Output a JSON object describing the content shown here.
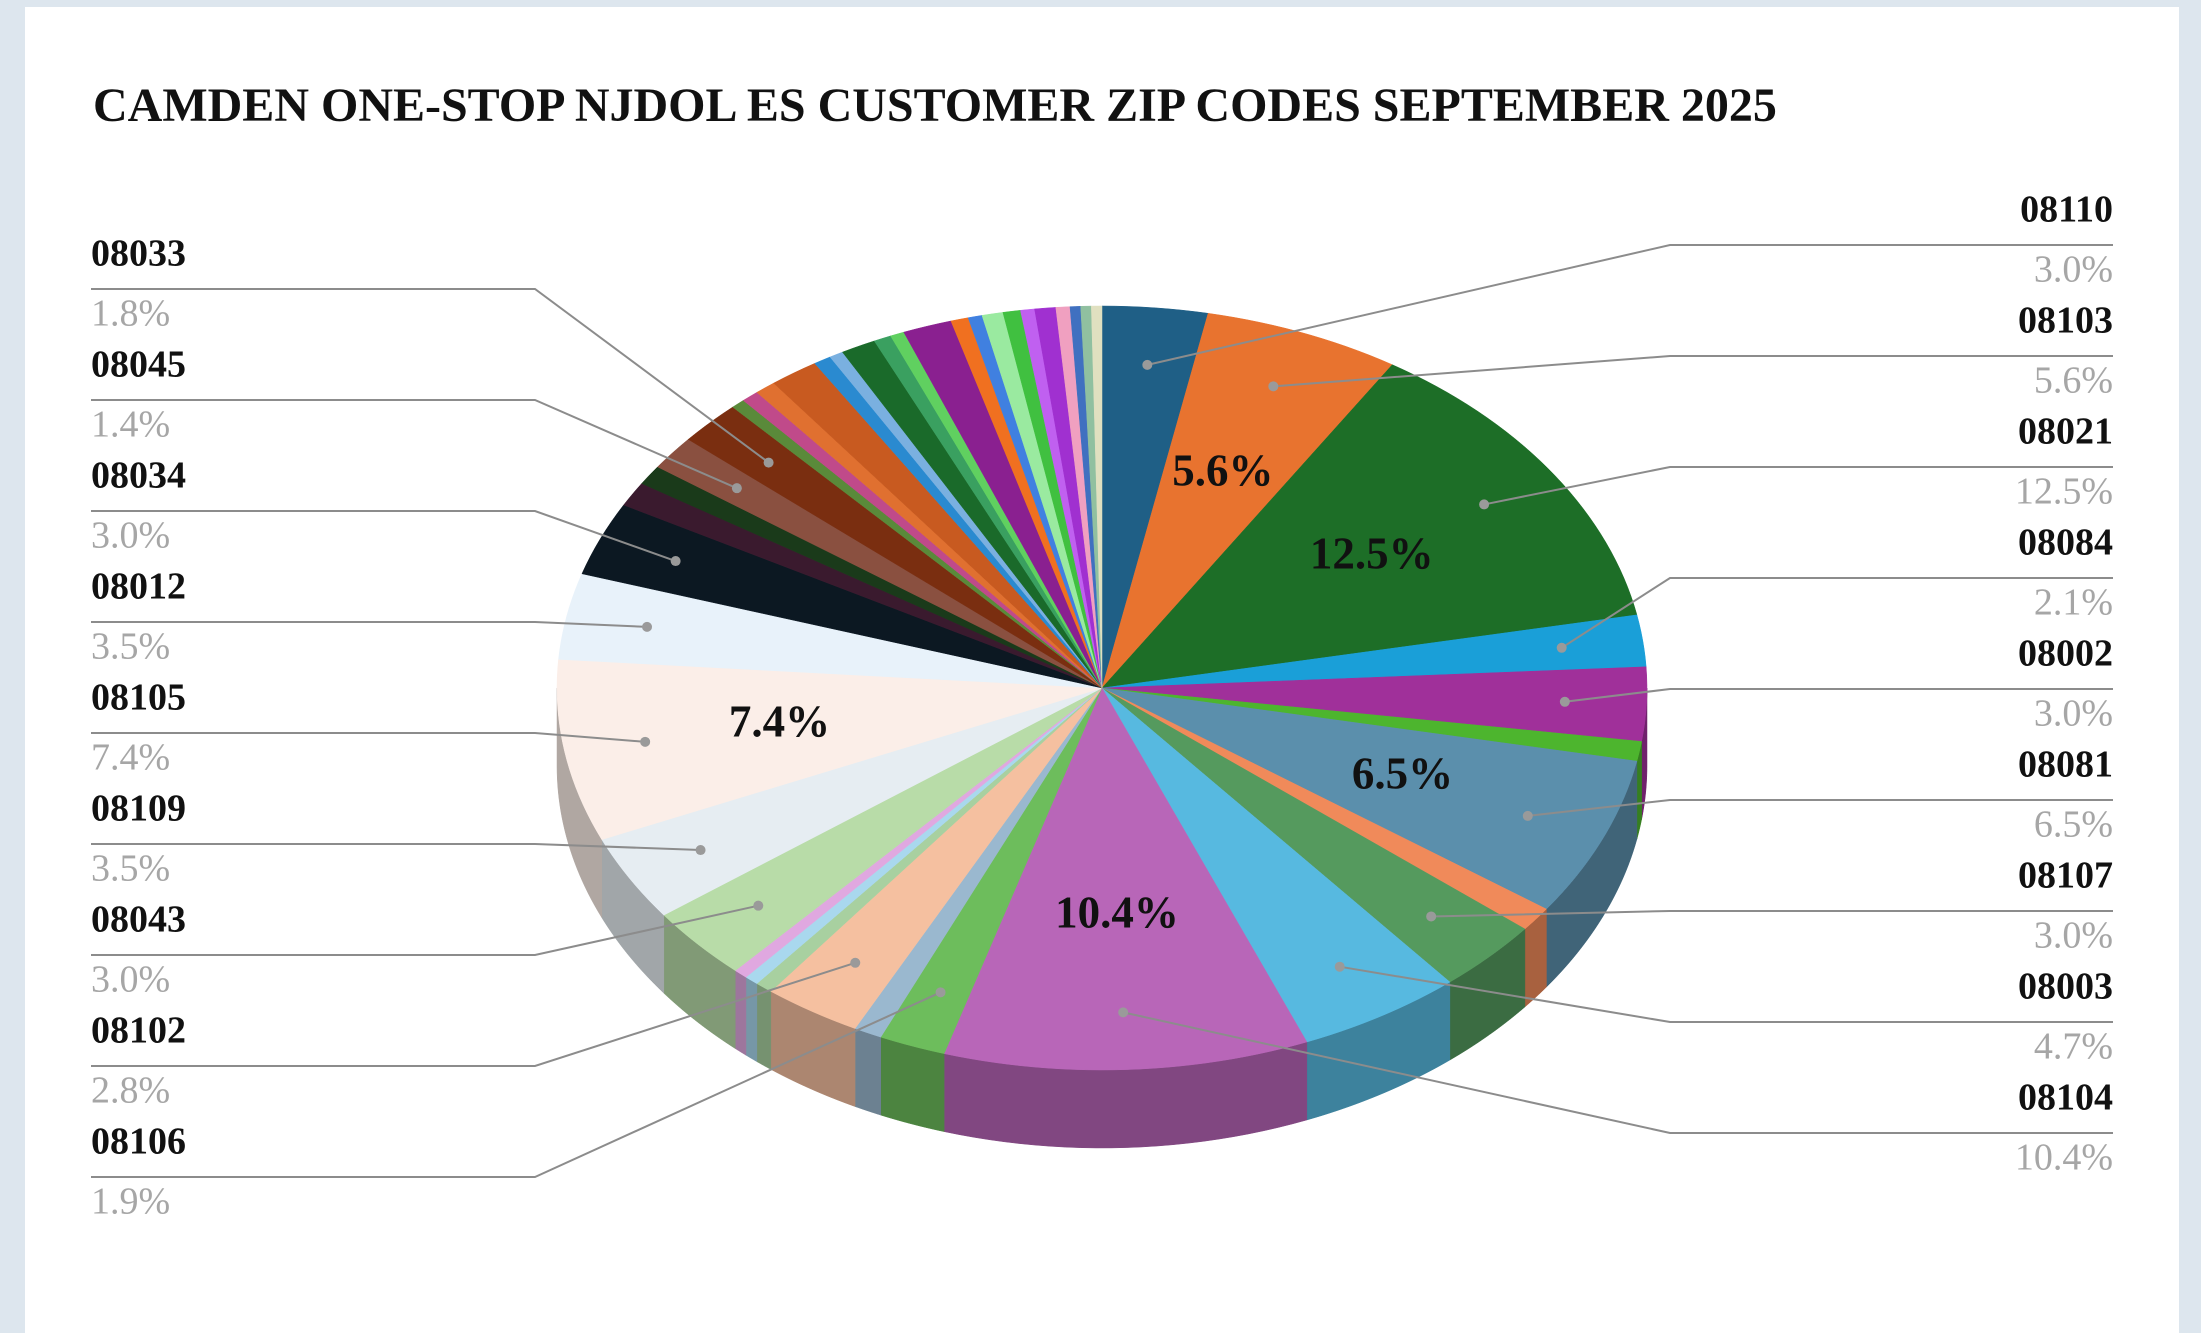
{
  "chart_data": {
    "type": "pie",
    "title": "CAMDEN ONE-STOP NJDOL ES CUSTOMER ZIP CODES  SEPTEMBER 2025",
    "categories": [
      "08110",
      "08103",
      "08021",
      "08084",
      "08002",
      null,
      "08081",
      null,
      "08107",
      "08003",
      "08104",
      "08106",
      null,
      "08102",
      null,
      null,
      null,
      "08043",
      "08109",
      "08105",
      "08012",
      "08034",
      null,
      null,
      "08045",
      "08033",
      null,
      null,
      null,
      null,
      null,
      null,
      null,
      null,
      null,
      null,
      null,
      null,
      null,
      null,
      null,
      null,
      null,
      null,
      null,
      null
    ],
    "values": [
      3,
      5.6,
      12.5,
      2.1,
      3,
      0.8,
      6.5,
      1.0,
      3,
      4.7,
      10.4,
      1.9,
      0.8,
      2.8,
      0.5,
      0.4,
      0.4,
      3,
      3.5,
      7.4,
      3.5,
      3,
      1.0,
      0.8,
      1.4,
      1.8,
      0.4,
      0.5,
      0.6,
      1.4,
      0.5,
      0.4,
      1.0,
      0.5,
      0.4,
      1.4,
      0.5,
      0.4,
      0.6,
      0.5,
      0.4,
      0.6,
      0.4,
      0.3,
      0.3,
      0.3
    ],
    "value_labels": [
      "3.0%",
      "5.6%",
      "12.5%",
      "2.1%",
      "3.0%",
      null,
      "6.5%",
      null,
      "3.0%",
      "4.7%",
      "10.4%",
      "1.9%",
      null,
      "2.8%",
      null,
      null,
      null,
      "3.0%",
      "3.5%",
      "7.4%",
      "3.5%",
      "3.0%",
      null,
      null,
      "1.4%",
      "1.8%",
      null,
      null,
      null,
      null,
      null,
      null,
      null,
      null,
      null,
      null,
      null,
      null,
      null,
      null,
      null,
      null,
      null,
      null,
      null,
      null
    ],
    "colors": [
      "#1f5f86",
      "#e8732f",
      "#1d6e27",
      "#1a9fd8",
      "#a0309a",
      "#4db52e",
      "#5b8fac",
      "#f08a5a",
      "#559a5e",
      "#57b9e0",
      "#b866b8",
      "#6dbd5c",
      "#9ab8cf",
      "#f5c0a0",
      "#a8d0a0",
      "#a9d8ee",
      "#e0a8e0",
      "#b8dca8",
      "#e6edf2",
      "#fbeee8",
      "#e8f2fa",
      "#0c1822",
      "#3a1a2e",
      "#1a3a1a",
      "#8a5040",
      "#7a2e10",
      "#5a8a3a",
      "#c04a8a",
      "#e07030",
      "#c85a20",
      "#2a8ad0",
      "#7ab0e0",
      "#1a6a2a",
      "#3aa060",
      "#60d060",
      "#8a2090",
      "#f07020",
      "#4080e0",
      "#9aeaa0",
      "#40c040",
      "#c060f0",
      "#a030d0",
      "#f0a0c0",
      "#4070c0",
      "#90c0a0",
      "#e0e0c0"
    ]
  }
}
